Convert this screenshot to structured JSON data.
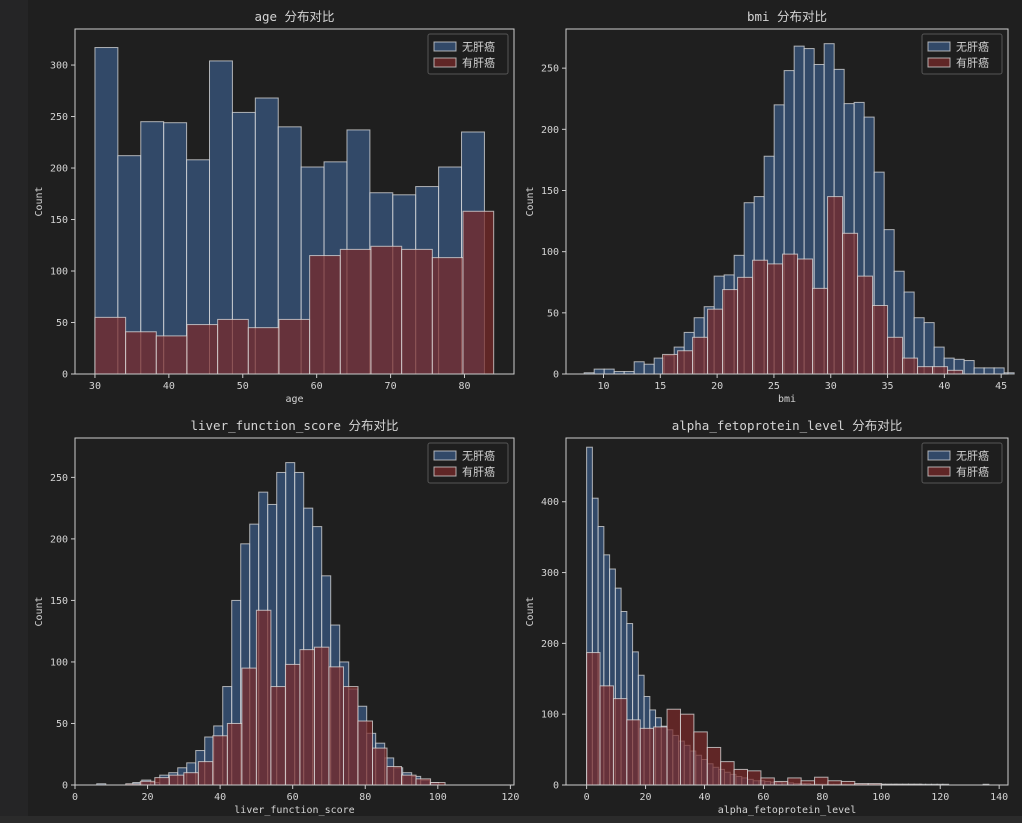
{
  "colors": {
    "background": "#1f1f1f",
    "axis": "#cccccc",
    "text": "#d4d4d4",
    "bar_edge": "#dddddd",
    "no_cancer_fill": "#3a5a85",
    "cancer_fill": "#7a2a2a",
    "legend_bg": "#1f1f1f"
  },
  "legend_labels": [
    "无肝癌",
    "有肝癌"
  ],
  "chart_data": [
    {
      "type": "histogram",
      "title": "age 分布对比",
      "xlabel": "age",
      "ylabel": "Count",
      "xlim": [
        27.3,
        86.7
      ],
      "ylim": [
        0,
        335
      ],
      "xticks": [
        30,
        40,
        50,
        60,
        70,
        80
      ],
      "yticks": [
        0,
        50,
        100,
        150,
        200,
        250,
        300
      ],
      "legend": "top-right",
      "series": [
        {
          "name": "无肝癌",
          "start": 30,
          "width": 3.1,
          "values": [
            317,
            212,
            245,
            244,
            208,
            304,
            254,
            268,
            240,
            201,
            206,
            237,
            176,
            174,
            182,
            201,
            235
          ]
        },
        {
          "name": "有肝癌",
          "start": 30,
          "width": 4.15,
          "values": [
            55,
            41,
            37,
            48,
            53,
            45,
            53,
            115,
            121,
            124,
            121,
            113,
            158
          ]
        }
      ]
    },
    {
      "type": "histogram",
      "title": "bmi 分布对比",
      "xlabel": "bmi",
      "ylabel": "Count",
      "xlim": [
        6.7,
        45.6
      ],
      "ylim": [
        0,
        282
      ],
      "xticks": [
        10,
        15,
        20,
        25,
        30,
        35,
        40,
        45
      ],
      "yticks": [
        0,
        50,
        100,
        150,
        200,
        250
      ],
      "legend": "top-right",
      "series": [
        {
          "name": "无肝癌",
          "start": 8.3,
          "width": 0.88,
          "values": [
            1,
            4,
            4,
            2,
            2,
            10,
            8,
            13,
            15,
            22,
            34,
            46,
            55,
            80,
            81,
            97,
            140,
            145,
            178,
            220,
            248,
            268,
            266,
            253,
            270,
            249,
            221,
            222,
            210,
            165,
            118,
            84,
            67,
            46,
            42,
            22,
            13,
            12,
            11,
            5,
            5,
            5,
            1
          ]
        },
        {
          "name": "有肝癌",
          "start": 15.2,
          "width": 1.32,
          "values": [
            16,
            19,
            30,
            53,
            69,
            79,
            93,
            90,
            98,
            94,
            70,
            145,
            115,
            80,
            56,
            30,
            13,
            6,
            6,
            3
          ]
        }
      ]
    },
    {
      "type": "histogram",
      "title": "liver_function_score 分布对比",
      "xlabel": "liver_function_score",
      "ylabel": "Count",
      "xlim": [
        0,
        121
      ],
      "ylim": [
        0,
        282
      ],
      "xticks": [
        0,
        20,
        40,
        60,
        80,
        100,
        120
      ],
      "yticks": [
        0,
        50,
        100,
        150,
        200,
        250
      ],
      "legend": "top-right",
      "series": [
        {
          "name": "无肝癌",
          "start": 6,
          "width": 2.48,
          "values": [
            1,
            0,
            0,
            0,
            2,
            4,
            2,
            8,
            10,
            14,
            18,
            28,
            39,
            48,
            80,
            150,
            196,
            212,
            238,
            228,
            254,
            262,
            254,
            225,
            210,
            170,
            130,
            100,
            78,
            64,
            42,
            34,
            22,
            14,
            10,
            7,
            4,
            2,
            0,
            0,
            0,
            0
          ]
        },
        {
          "name": "有肝癌",
          "start": 14,
          "width": 4.0,
          "values": [
            1,
            3,
            6,
            8,
            10,
            19,
            40,
            50,
            95,
            142,
            80,
            98,
            110,
            112,
            96,
            80,
            52,
            30,
            15,
            8,
            5,
            2
          ]
        }
      ]
    },
    {
      "type": "histogram",
      "title": "alpha_fetoprotein_level 分布对比",
      "xlabel": "alpha_fetoprotein_level",
      "ylabel": "Count",
      "xlim": [
        -7,
        143
      ],
      "ylim": [
        0,
        490
      ],
      "xticks": [
        0,
        20,
        40,
        60,
        80,
        100,
        120,
        140
      ],
      "yticks": [
        0,
        100,
        200,
        300,
        400
      ],
      "legend": "top-right",
      "series": [
        {
          "name": "无肝癌",
          "start": 0,
          "width": 1.95,
          "values": [
            477,
            405,
            365,
            325,
            305,
            278,
            245,
            228,
            188,
            155,
            125,
            106,
            95,
            83,
            78,
            70,
            62,
            56,
            48,
            42,
            36,
            30,
            25,
            22,
            18,
            15,
            12,
            10,
            8,
            6,
            6,
            5,
            4,
            4,
            3,
            3,
            2,
            2,
            2,
            1,
            1,
            1,
            1,
            1,
            1,
            1,
            1,
            1,
            1,
            1,
            1,
            1,
            1,
            1,
            1,
            1,
            1,
            1,
            1,
            1,
            1,
            1,
            1,
            0,
            0,
            0,
            0,
            0,
            0,
            1
          ]
        },
        {
          "name": "有肝癌",
          "start": 0,
          "width": 4.55,
          "values": [
            187,
            140,
            122,
            92,
            80,
            82,
            107,
            100,
            75,
            53,
            33,
            22,
            20,
            10,
            5,
            10,
            6,
            11,
            6,
            5,
            2,
            2,
            1,
            1,
            1,
            0,
            0,
            0,
            0,
            0
          ]
        }
      ]
    }
  ]
}
